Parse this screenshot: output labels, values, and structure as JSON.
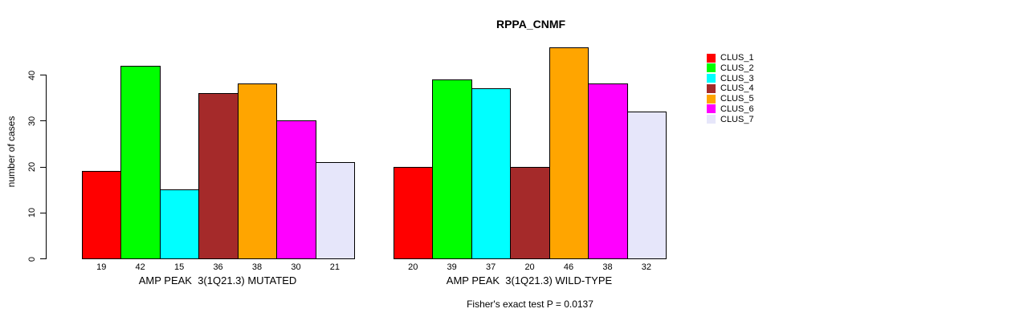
{
  "title": "RPPA_CNMF",
  "chart_data": {
    "type": "bar",
    "title": "RPPA_CNMF",
    "ylabel": "number of cases",
    "xlabel": "",
    "ylim": [
      0,
      46
    ],
    "yticks": [
      0,
      10,
      20,
      30,
      40
    ],
    "grid": false,
    "legend_position": "right-outside",
    "legend": [
      "CLUS_1",
      "CLUS_2",
      "CLUS_3",
      "CLUS_4",
      "CLUS_5",
      "CLUS_6",
      "CLUS_7"
    ],
    "colors": [
      "#ff0000",
      "#00ff00",
      "#00ffff",
      "#a52a2a",
      "#ffa500",
      "#ff00ff",
      "#e6e6fa"
    ],
    "bar_border_color": "#000000",
    "groups": [
      {
        "label": "AMP PEAK  3(1Q21.3) MUTATED",
        "values": [
          19,
          42,
          15,
          36,
          38,
          30,
          21
        ]
      },
      {
        "label": "AMP PEAK  3(1Q21.3) WILD-TYPE",
        "values": [
          20,
          39,
          37,
          20,
          46,
          38,
          32
        ]
      }
    ],
    "footnote": "Fisher's exact test P = 0.0137"
  }
}
